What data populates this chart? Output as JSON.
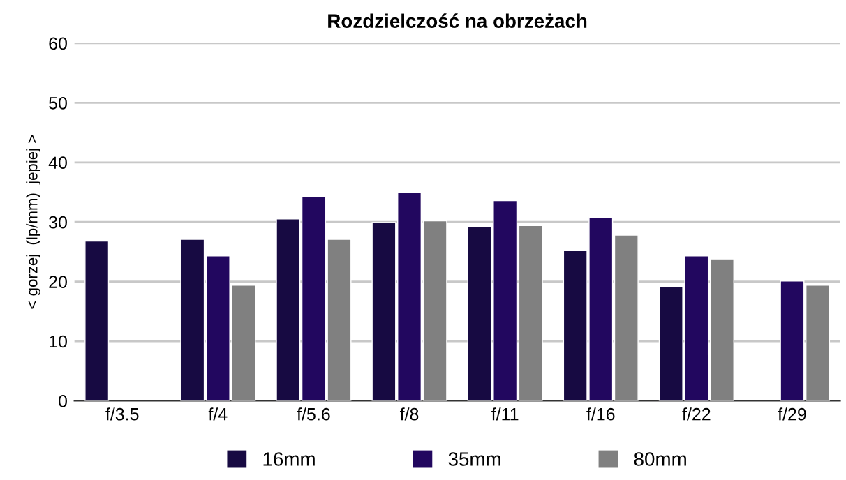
{
  "chart_data": {
    "type": "bar",
    "title": "Rozdzielczość na obrzeżach",
    "ylabel": "< gorzej  (lp/mm)  jepiej >",
    "categories": [
      "f/3.5",
      "f/4",
      "f/5.6",
      "f/8",
      "f/11",
      "f/16",
      "f/22",
      "f/29"
    ],
    "series": [
      {
        "name": "16mm",
        "color": "#170a42",
        "values": [
          26.8,
          27.1,
          30.5,
          29.9,
          29.2,
          25.2,
          19.2,
          null
        ]
      },
      {
        "name": "35mm",
        "color": "#22075f",
        "values": [
          null,
          24.3,
          34.3,
          35.0,
          33.6,
          30.8,
          24.3,
          20.1
        ]
      },
      {
        "name": "80mm",
        "color": "#808080",
        "values": [
          null,
          19.4,
          27.1,
          30.2,
          29.4,
          27.8,
          23.8,
          19.4
        ]
      }
    ],
    "ylim": [
      0,
      60
    ],
    "yticks": [
      0,
      10,
      20,
      30,
      40,
      50,
      60
    ],
    "grid": "y",
    "legend": "bottom"
  }
}
